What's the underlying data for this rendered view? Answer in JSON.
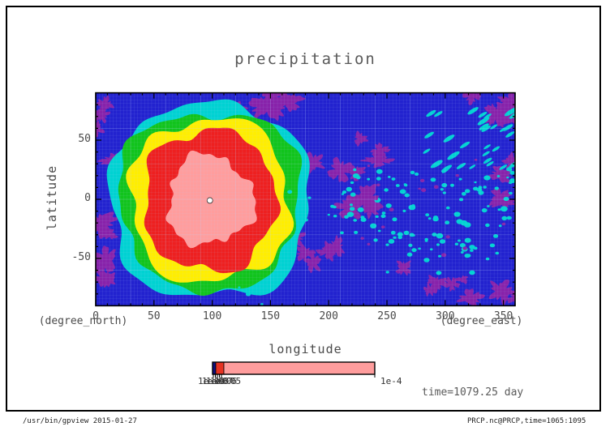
{
  "title": "precipitation",
  "axes": {
    "x": {
      "label": "longitude",
      "unit": "(degree_east)",
      "ticks": [
        "0",
        "50",
        "100",
        "150",
        "200",
        "250",
        "300",
        "350"
      ]
    },
    "y": {
      "label": "latitude",
      "unit": "(degree_north)",
      "ticks": [
        "50",
        "0",
        "-50"
      ]
    }
  },
  "colorbar": {
    "left_labels": [
      "1e-09",
      "1e-08",
      "1e-07",
      "1e-06",
      "1e-05"
    ],
    "right_label": "1e-4",
    "segments": [
      {
        "color": "#101080",
        "frac": 0.02
      },
      {
        "color": "#e63322",
        "frac": 0.05
      },
      {
        "color": "#ff9d9d",
        "frac": 0.93
      }
    ]
  },
  "annotations": {
    "time_label": "time=1079.25 day"
  },
  "footer": {
    "left": "/usr/bin/gpview  2015-01-27",
    "right": "PRCP.nc@PRCP,time=1065:1095"
  },
  "chart_data": {
    "type": "filled-contour",
    "title": "precipitation",
    "xlabel": "longitude (degree_east)",
    "ylabel": "latitude (degree_north)",
    "xlim": [
      0,
      360
    ],
    "ylim": [
      -90,
      90
    ],
    "time": "time=1079.25 day",
    "levels": [
      "1e-09",
      "1e-08",
      "1e-07",
      "1e-06",
      "1e-05",
      "1e-4"
    ],
    "legend": "horizontal colorbar, bottom center",
    "grid": true,
    "colors": {
      "blue": "#2222cf",
      "purple": "#8822aa",
      "cyan": "#00d2d2",
      "green": "#11c41c",
      "yellow": "#ffee00",
      "red": "#ee2020",
      "pink": "#ff9d9d"
    },
    "center": {
      "lon": 98,
      "lat": -1,
      "marker": "white-dot"
    },
    "rings": [
      {
        "color_key": "cyan",
        "rlon": 84,
        "rlat": 81,
        "wobble": 0.045,
        "squareness": 2.6
      },
      {
        "color_key": "green",
        "rlon": 76,
        "rlat": 74,
        "wobble": 0.05,
        "squareness": 2.6
      },
      {
        "color_key": "yellow",
        "rlon": 67,
        "rlat": 68,
        "wobble": 0.055,
        "squareness": 2.5
      },
      {
        "color_key": "red",
        "rlon": 56,
        "rlat": 59,
        "wobble": 0.06,
        "squareness": 2.3
      },
      {
        "color_key": "pink",
        "rlon": 37,
        "rlat": 38,
        "wobble": 0.1,
        "squareness": 2.0
      }
    ],
    "purple_patches": [
      {
        "lon": [
          -2,
          16
        ],
        "lat": [
          -85,
          85
        ],
        "n": 11,
        "r": [
          5,
          11
        ]
      },
      {
        "lon": [
          110,
          172
        ],
        "lat": [
          76,
          92
        ],
        "n": 6,
        "r": [
          5,
          9
        ]
      },
      {
        "lon": [
          295,
          362
        ],
        "lat": [
          68,
          90
        ],
        "n": 5,
        "r": [
          5,
          10
        ]
      },
      {
        "lon": [
          185,
          245
        ],
        "lat": [
          -12,
          58
        ],
        "n": 9,
        "r": [
          4,
          10
        ]
      },
      {
        "lon": [
          168,
          215
        ],
        "lat": [
          -60,
          -22
        ],
        "n": 5,
        "r": [
          4,
          8
        ]
      },
      {
        "lon": [
          334,
          363
        ],
        "lat": [
          -28,
          48
        ],
        "n": 4,
        "r": [
          4,
          8
        ]
      },
      {
        "lon": [
          248,
          312
        ],
        "lat": [
          -82,
          -56
        ],
        "n": 4,
        "r": [
          4,
          8
        ]
      },
      {
        "lon": [
          308,
          362
        ],
        "lat": [
          -90,
          -62
        ],
        "n": 4,
        "r": [
          4,
          8
        ]
      }
    ],
    "speckle_groups": [
      {
        "color_key": "cyan",
        "lon": [
          205,
          362
        ],
        "lat": [
          -3,
          26
        ],
        "n": 48,
        "r": [
          1.2,
          3.2
        ],
        "streak": false
      },
      {
        "color_key": "cyan",
        "lon": [
          212,
          358
        ],
        "lat": [
          -36,
          -4
        ],
        "n": 52,
        "r": [
          1.2,
          3.4
        ],
        "streak": false
      },
      {
        "color_key": "cyan",
        "lon": [
          240,
          345
        ],
        "lat": [
          -64,
          -34
        ],
        "n": 26,
        "r": [
          1.2,
          3.0
        ],
        "streak": false
      },
      {
        "color_key": "cyan",
        "lon": [
          278,
          362
        ],
        "lat": [
          22,
          76
        ],
        "n": 34,
        "r": [
          2.0,
          4.0
        ],
        "streak": true
      },
      {
        "color_key": "cyan",
        "lon": [
          166,
          212
        ],
        "lat": [
          -32,
          12
        ],
        "n": 12,
        "r": [
          1.2,
          2.6
        ],
        "streak": false
      },
      {
        "color_key": "cyan",
        "lon": [
          122,
          158
        ],
        "lat": [
          -90,
          -74
        ],
        "n": 6,
        "r": [
          1.2,
          2.4
        ],
        "streak": false
      },
      {
        "color_key": "purple",
        "lon": [
          215,
          360
        ],
        "lat": [
          -55,
          40
        ],
        "n": 20,
        "r": [
          1.2,
          2.6
        ],
        "streak": false
      }
    ]
  }
}
